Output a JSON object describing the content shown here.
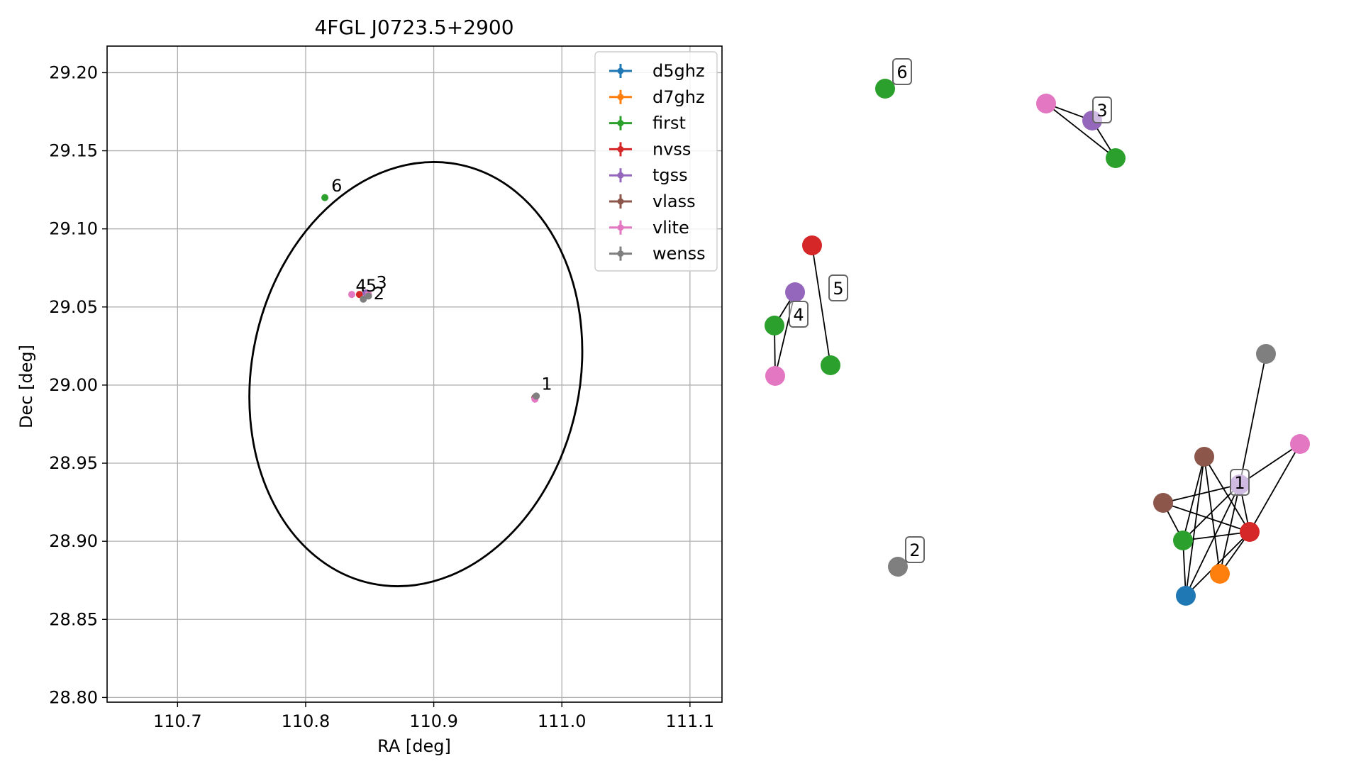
{
  "chart_data": [
    {
      "type": "scatter",
      "title": "4FGL J0723.5+2900",
      "xlabel": "RA [deg]",
      "ylabel": "Dec [deg]",
      "xlim": [
        110.645,
        111.125
      ],
      "ylim": [
        28.797,
        29.217
      ],
      "xticks": [
        110.7,
        110.8,
        110.9,
        111.0,
        111.1
      ],
      "xtick_labels": [
        "110.7",
        "110.8",
        "110.9",
        "111.0",
        "111.1"
      ],
      "yticks": [
        28.8,
        28.85,
        28.9,
        28.95,
        29.0,
        29.05,
        29.1,
        29.15,
        29.2
      ],
      "ytick_labels": [
        "28.80",
        "28.85",
        "28.90",
        "28.95",
        "29.00",
        "29.05",
        "29.10",
        "29.15",
        "29.20"
      ],
      "grid": true,
      "legend_position": "upper right",
      "series": [
        {
          "name": "d5ghz",
          "color": "#1f77b4",
          "points": [
            {
              "x": 110.979,
              "y": 28.992
            }
          ]
        },
        {
          "name": "d7ghz",
          "color": "#ff7f0e",
          "points": [
            {
              "x": 110.979,
              "y": 28.992
            }
          ]
        },
        {
          "name": "first",
          "color": "#2ca02c",
          "points": [
            {
              "x": 110.979,
              "y": 28.992
            },
            {
              "x": 110.815,
              "y": 29.12
            }
          ]
        },
        {
          "name": "nvss",
          "color": "#d62728",
          "points": [
            {
              "x": 110.979,
              "y": 28.992
            },
            {
              "x": 110.842,
              "y": 29.058
            }
          ]
        },
        {
          "name": "tgss",
          "color": "#9467bd",
          "points": [
            {
              "x": 110.979,
              "y": 28.992
            },
            {
              "x": 110.847,
              "y": 29.059
            }
          ]
        },
        {
          "name": "vlass",
          "color": "#8c564b",
          "points": [
            {
              "x": 110.979,
              "y": 28.992
            }
          ]
        },
        {
          "name": "vlite",
          "color": "#e377c2",
          "points": [
            {
              "x": 110.979,
              "y": 28.991
            },
            {
              "x": 110.836,
              "y": 29.058
            },
            {
              "x": 110.849,
              "y": 29.058
            }
          ]
        },
        {
          "name": "wenss",
          "color": "#7f7f7f",
          "points": [
            {
              "x": 110.98,
              "y": 28.993
            },
            {
              "x": 110.845,
              "y": 29.055
            },
            {
              "x": 110.849,
              "y": 29.057
            }
          ]
        }
      ],
      "annotations": [
        {
          "text": "1",
          "x": 110.984,
          "y": 28.997
        },
        {
          "text": "2",
          "x": 110.853,
          "y": 29.055
        },
        {
          "text": "3",
          "x": 110.855,
          "y": 29.062
        },
        {
          "text": "4",
          "x": 110.839,
          "y": 29.06
        },
        {
          "text": "5",
          "x": 110.847,
          "y": 29.06
        },
        {
          "text": "6",
          "x": 110.82,
          "y": 29.124
        }
      ],
      "ellipse": {
        "center": [
          110.886,
          29.007
        ],
        "semi_ra": 0.128,
        "semi_dec": 0.137,
        "angle_deg": 12,
        "color": "#000000"
      }
    },
    {
      "type": "network",
      "colors": {
        "d5ghz": "#1f77b4",
        "d7ghz": "#ff7f0e",
        "first": "#2ca02c",
        "nvss": "#d62728",
        "tgss": "#9467bd",
        "vlass": "#8c564b",
        "vlite": "#e377c2",
        "wenss": "#7f7f7f"
      },
      "nodes": [
        {
          "id": "g6",
          "survey": "first",
          "label": "6"
        },
        {
          "id": "p3",
          "survey": "vlite"
        },
        {
          "id": "u3",
          "survey": "tgss",
          "label": "3"
        },
        {
          "id": "g3",
          "survey": "first"
        },
        {
          "id": "r5",
          "survey": "nvss"
        },
        {
          "id": "g5",
          "survey": "first",
          "label": "5"
        },
        {
          "id": "u4",
          "survey": "tgss",
          "label": "4"
        },
        {
          "id": "g4",
          "survey": "first"
        },
        {
          "id": "p4",
          "survey": "vlite"
        },
        {
          "id": "w2",
          "survey": "wenss",
          "label": "2"
        },
        {
          "id": "w1",
          "survey": "wenss"
        },
        {
          "id": "p1",
          "survey": "vlite"
        },
        {
          "id": "b1a",
          "survey": "vlass"
        },
        {
          "id": "b1b",
          "survey": "vlass"
        },
        {
          "id": "u1",
          "survey": "tgss",
          "label": "1"
        },
        {
          "id": "g1",
          "survey": "first"
        },
        {
          "id": "r1",
          "survey": "nvss"
        },
        {
          "id": "o1",
          "survey": "d7ghz"
        },
        {
          "id": "d1",
          "survey": "d5ghz"
        }
      ],
      "edges": [
        [
          "p3",
          "u3"
        ],
        [
          "p3",
          "g3"
        ],
        [
          "u3",
          "g3"
        ],
        [
          "r5",
          "g5"
        ],
        [
          "u4",
          "g4"
        ],
        [
          "u4",
          "p4"
        ],
        [
          "g4",
          "p4"
        ],
        [
          "w1",
          "u1"
        ],
        [
          "p1",
          "u1"
        ],
        [
          "p1",
          "r1"
        ],
        [
          "b1a",
          "g1"
        ],
        [
          "b1a",
          "o1"
        ],
        [
          "b1a",
          "d1"
        ],
        [
          "b1a",
          "r1"
        ],
        [
          "b1b",
          "u1"
        ],
        [
          "b1b",
          "g1"
        ],
        [
          "b1b",
          "r1"
        ],
        [
          "u1",
          "g1"
        ],
        [
          "u1",
          "r1"
        ],
        [
          "u1",
          "o1"
        ],
        [
          "u1",
          "d1"
        ],
        [
          "g1",
          "r1"
        ],
        [
          "g1",
          "d1"
        ],
        [
          "r1",
          "o1"
        ],
        [
          "r1",
          "d1"
        ]
      ]
    }
  ]
}
